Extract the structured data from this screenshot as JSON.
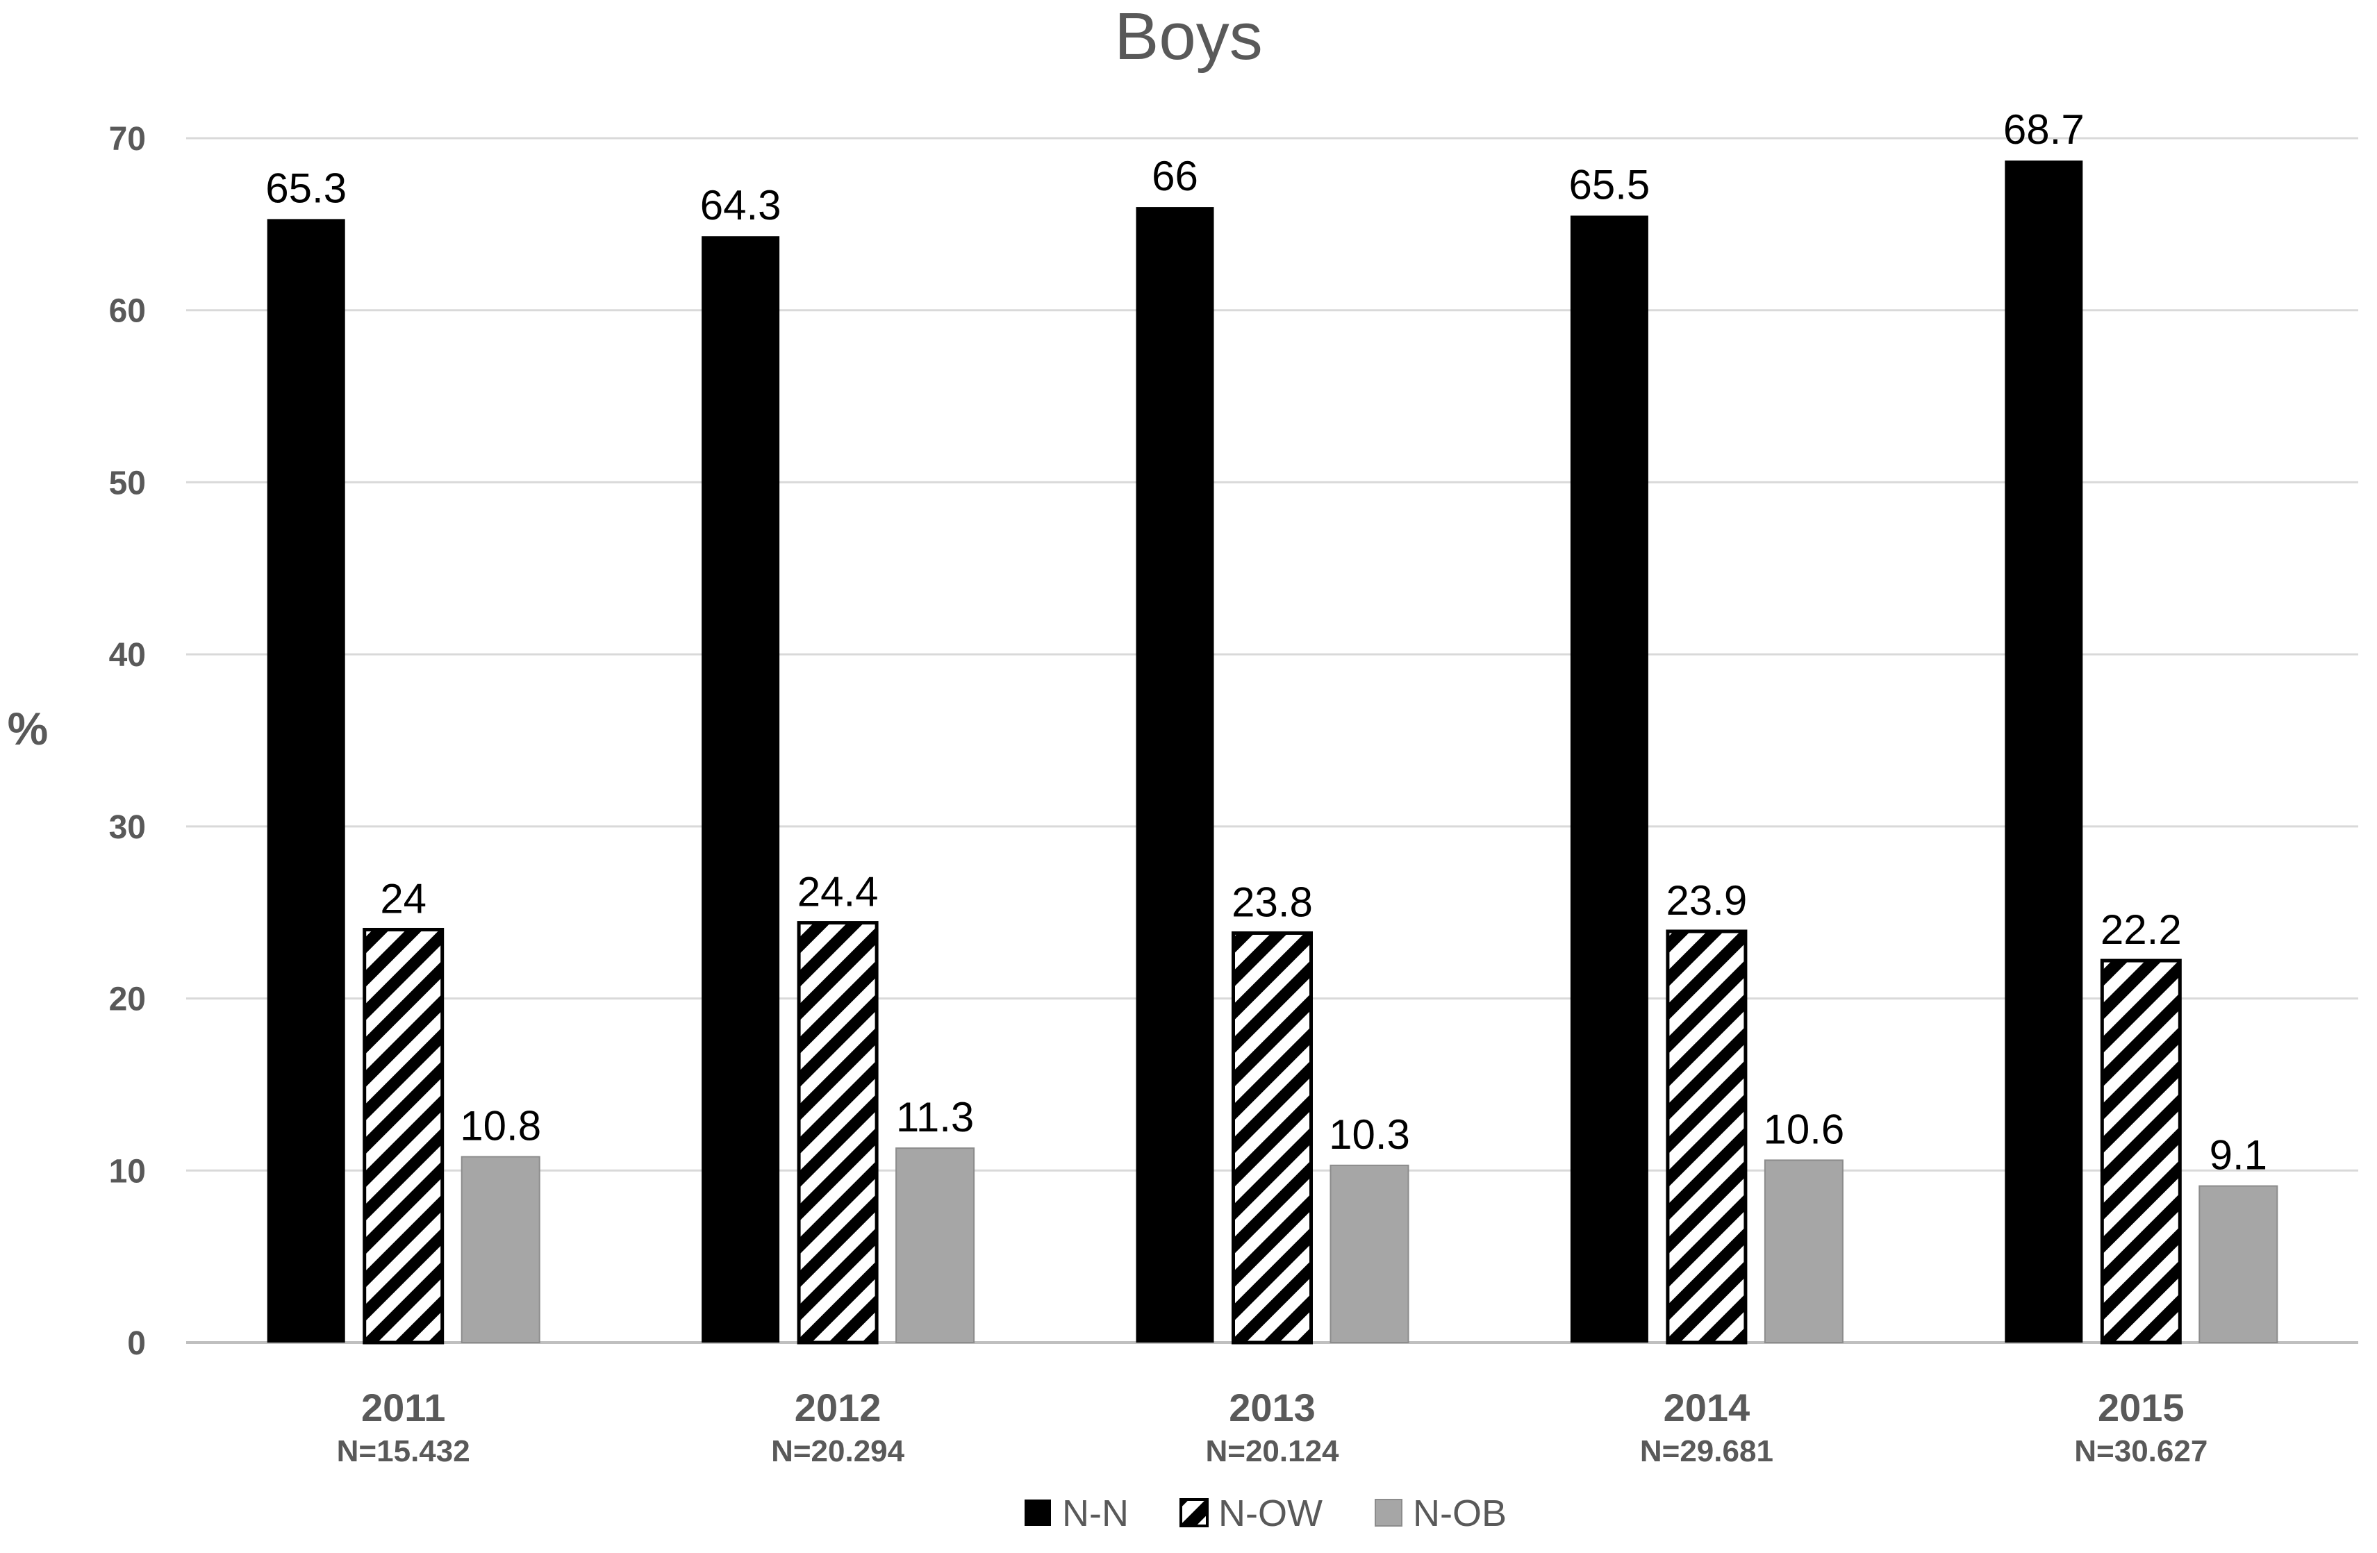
{
  "chart_data": {
    "type": "bar",
    "title": "Boys",
    "xlabel": "",
    "ylabel": "%",
    "ylim": [
      0,
      70
    ],
    "yticks": [
      0,
      10,
      20,
      30,
      40,
      50,
      60,
      70
    ],
    "grid": true,
    "legend_position": "bottom",
    "categories": [
      "2011",
      "2012",
      "2013",
      "2014",
      "2015"
    ],
    "category_sublabels": [
      "N=15.432",
      "N=20.294",
      "N=20.124",
      "N=29.681",
      "N=30.627"
    ],
    "series": [
      {
        "name": "N-N",
        "values": [
          65.3,
          64.3,
          66,
          65.5,
          68.7
        ],
        "labels": [
          "65.3",
          "64.3",
          "66",
          "65.5",
          "68.7"
        ],
        "color": "#000000",
        "pattern": "solid"
      },
      {
        "name": "N-OW",
        "values": [
          24,
          24.4,
          23.8,
          23.9,
          22.2
        ],
        "labels": [
          "24",
          "24.4",
          "23.8",
          "23.9",
          "22.2"
        ],
        "color": "#000000",
        "pattern": "diagonal-stripes"
      },
      {
        "name": "N-OB",
        "values": [
          10.8,
          11.3,
          10.3,
          10.6,
          9.1
        ],
        "labels": [
          "10.8",
          "11.3",
          "10.3",
          "10.6",
          "9.1"
        ],
        "color": "#a6a6a6",
        "pattern": "solid"
      }
    ]
  }
}
